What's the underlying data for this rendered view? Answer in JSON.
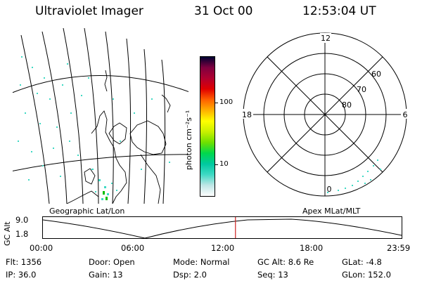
{
  "header": {
    "title": "Ultraviolet Imager",
    "date": "31 Oct 00",
    "time": "12:53:04 UT"
  },
  "left_panel": {
    "label": "Geographic Lat/Lon"
  },
  "right_panel": {
    "label": "Apex MLat/MLT",
    "mlt_labels": {
      "top": "12",
      "left": "18",
      "right": "6",
      "bottom": "0"
    },
    "lat_labels": [
      "60",
      "70",
      "80"
    ]
  },
  "colorbar": {
    "unit_label": "photon cm⁻²s⁻¹",
    "ticks": [
      "100",
      "10"
    ],
    "colors": [
      "#ffffff",
      "#bfe6e6",
      "#3fd9c4",
      "#00c8a0",
      "#00d84c",
      "#6ee000",
      "#c8f000",
      "#ffff00",
      "#ffb000",
      "#ff6000",
      "#e00000",
      "#b00030",
      "#800040",
      "#000030"
    ]
  },
  "timeline": {
    "axis_label": "GC Alt",
    "y_ticks": [
      "9.0",
      "1.8"
    ],
    "x_ticks": [
      "00:00",
      "06:00",
      "12:00",
      "18:00",
      "23:59"
    ],
    "marker_hour": 12.88,
    "marker_color": "#cc2020"
  },
  "info": {
    "row1": {
      "flt": "Flt: 1356",
      "door": "Door: Open",
      "mode": "Mode: Normal",
      "gcalt": "GC Alt: 8.6 Re",
      "glat": "GLat:  -4.8"
    },
    "row2": {
      "ip": "IP: 36.0",
      "gain": "Gain: 13",
      "dsp": "Dsp:    2.0",
      "seq": "Seq: 13",
      "glon": "GLon: 152.0"
    }
  }
}
